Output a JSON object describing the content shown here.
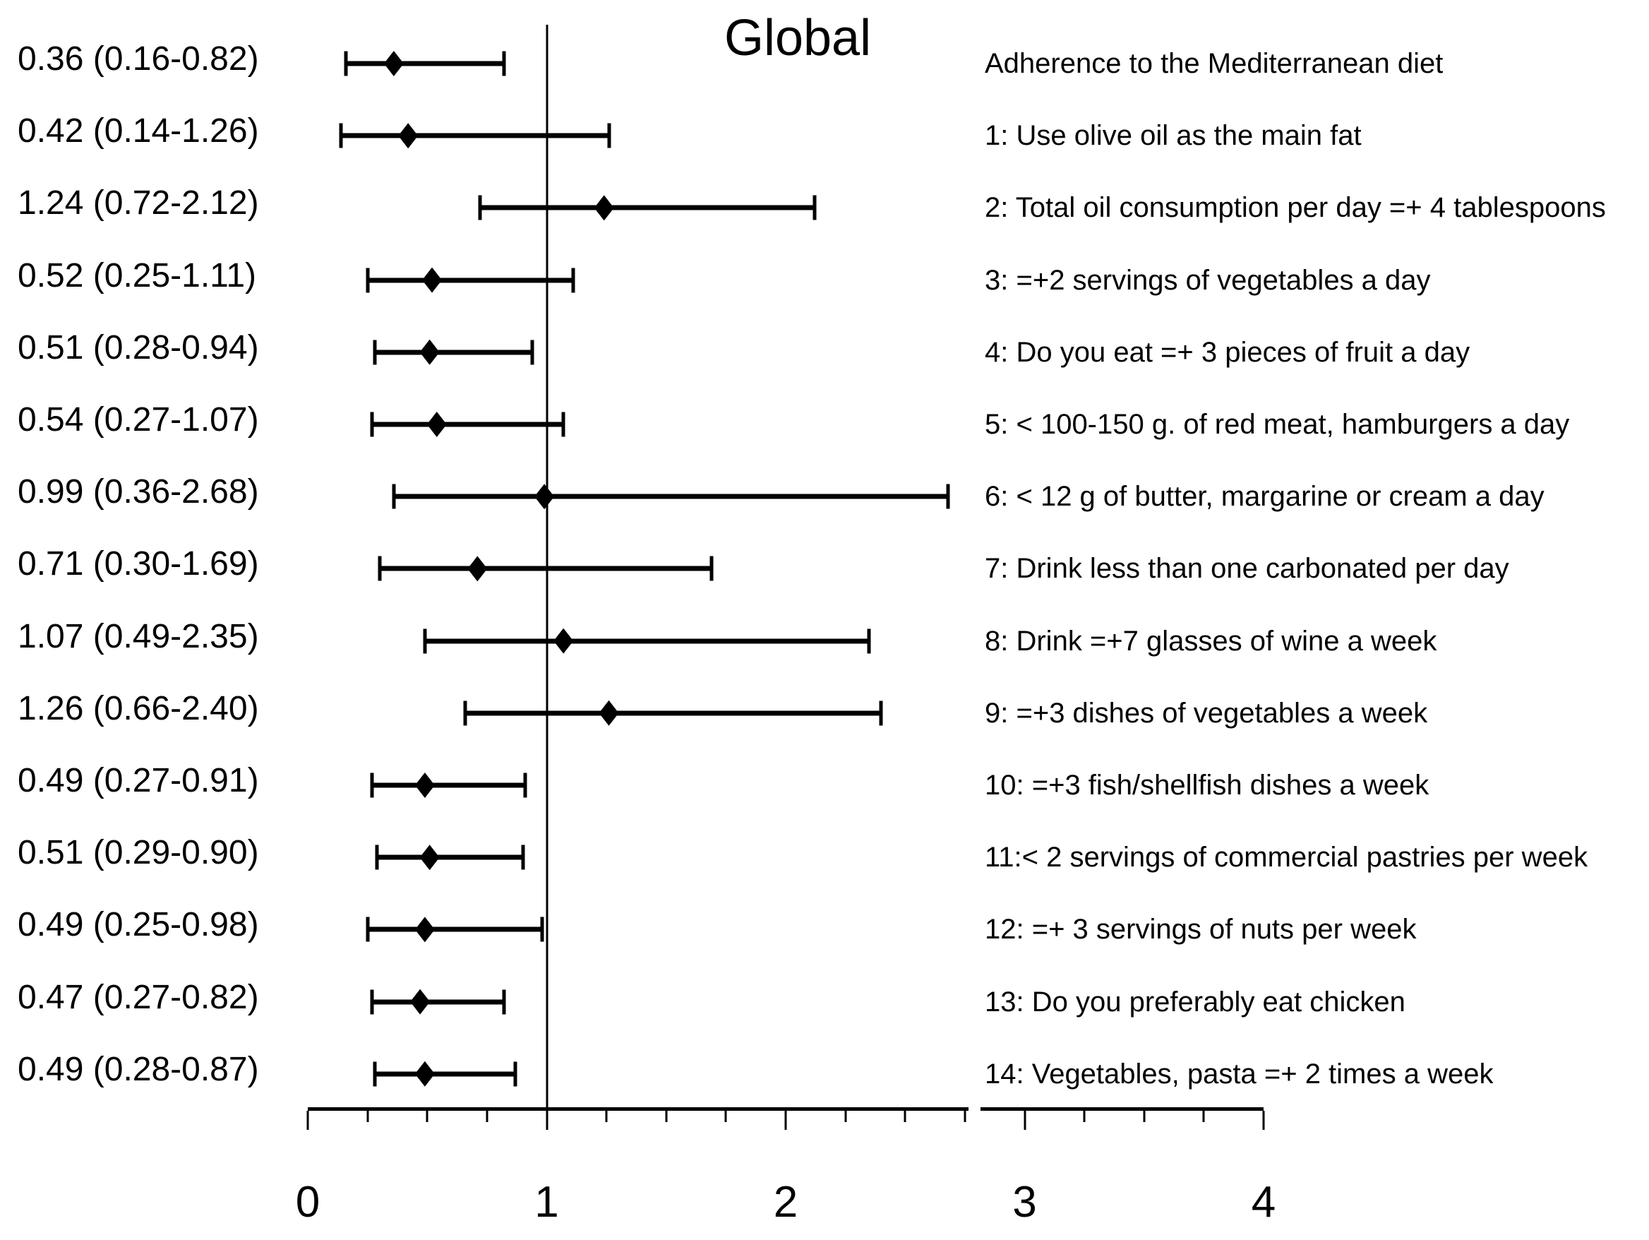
{
  "chart_data": {
    "type": "scatter",
    "variant": "forest-plot",
    "title": "Global",
    "xlabel": "",
    "ylabel": "",
    "x_axis": {
      "min": 0,
      "max": 4,
      "reference_line_x": 1,
      "axis_break_values": [
        2.765,
        2.815
      ],
      "major_ticks": [
        {
          "value": 0,
          "label": "0"
        },
        {
          "value": 1,
          "label": "1"
        },
        {
          "value": 2,
          "label": "2"
        },
        {
          "value": 3,
          "label": "3"
        },
        {
          "value": 4,
          "label": "4"
        }
      ],
      "minor_ticks": [
        0.25,
        0.5,
        0.75,
        1.25,
        1.5,
        1.75,
        2.25,
        2.5,
        2.75,
        3.25,
        3.5,
        3.75
      ]
    },
    "legend": null,
    "grid": false,
    "rows": [
      {
        "estimate_label": "0.36 (0.16-0.82)",
        "item_label": "Adherence to the Mediterranean diet",
        "or": 0.36,
        "ci_low": 0.16,
        "ci_high": 0.82
      },
      {
        "estimate_label": "0.42 (0.14-1.26)",
        "item_label": "1: Use olive oil as the main fat",
        "or": 0.42,
        "ci_low": 0.14,
        "ci_high": 1.26
      },
      {
        "estimate_label": "1.24 (0.72-2.12)",
        "item_label": "2: Total oil consumption per day =+ 4 tablespoons",
        "or": 1.24,
        "ci_low": 0.72,
        "ci_high": 2.12
      },
      {
        "estimate_label": "0.52 (0.25-1.11)",
        "item_label": "3: =+2 servings of vegetables a day",
        "or": 0.52,
        "ci_low": 0.25,
        "ci_high": 1.11
      },
      {
        "estimate_label": "0.51 (0.28-0.94)",
        "item_label": "4: Do you eat =+ 3 pieces of fruit a day",
        "or": 0.51,
        "ci_low": 0.28,
        "ci_high": 0.94
      },
      {
        "estimate_label": "0.54 (0.27-1.07)",
        "item_label": "5: < 100-150 g. of red meat, hamburgers a day",
        "or": 0.54,
        "ci_low": 0.27,
        "ci_high": 1.07
      },
      {
        "estimate_label": "0.99 (0.36-2.68)",
        "item_label": "6: < 12 g of butter, margarine or cream a day",
        "or": 0.99,
        "ci_low": 0.36,
        "ci_high": 2.68
      },
      {
        "estimate_label": "0.71 (0.30-1.69)",
        "item_label": "7: Drink less than one carbonated per day",
        "or": 0.71,
        "ci_low": 0.3,
        "ci_high": 1.69
      },
      {
        "estimate_label": "1.07 (0.49-2.35)",
        "item_label": "8: Drink =+7 glasses of wine a week",
        "or": 1.07,
        "ci_low": 0.49,
        "ci_high": 2.35
      },
      {
        "estimate_label": "1.26 (0.66-2.40)",
        "item_label": "9: =+3 dishes of vegetables a week",
        "or": 1.26,
        "ci_low": 0.66,
        "ci_high": 2.4
      },
      {
        "estimate_label": "0.49 (0.27-0.91)",
        "item_label": "10: =+3 fish/shellfish dishes a week",
        "or": 0.49,
        "ci_low": 0.27,
        "ci_high": 0.91
      },
      {
        "estimate_label": "0.51 (0.29-0.90)",
        "item_label": "11:< 2 servings of commercial pastries per week",
        "or": 0.51,
        "ci_low": 0.29,
        "ci_high": 0.9
      },
      {
        "estimate_label": "0.49 (0.25-0.98)",
        "item_label": "12: =+ 3 servings of nuts per week",
        "or": 0.49,
        "ci_low": 0.25,
        "ci_high": 0.98
      },
      {
        "estimate_label": "0.47 (0.27-0.82)",
        "item_label": "13: Do you preferably eat chicken",
        "or": 0.47,
        "ci_low": 0.27,
        "ci_high": 0.82
      },
      {
        "estimate_label": "0.49 (0.28-0.87)",
        "item_label": "14: Vegetables, pasta =+ 2 times a week",
        "or": 0.49,
        "ci_low": 0.28,
        "ci_high": 0.87
      }
    ],
    "colors": {
      "foreground": "#000000",
      "background": "#ffffff"
    }
  }
}
